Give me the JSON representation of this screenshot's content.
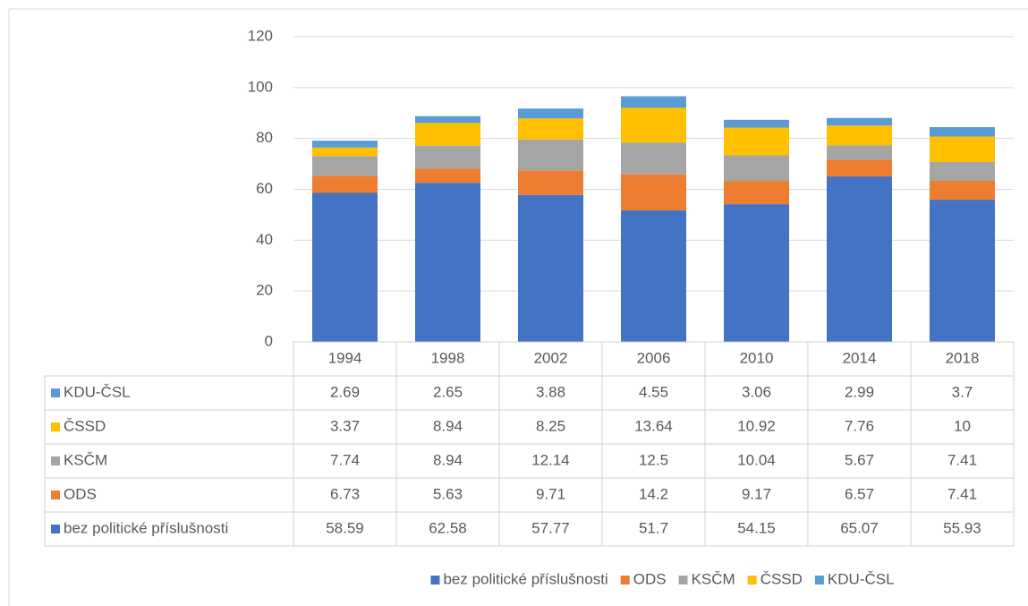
{
  "chart_data": {
    "type": "bar",
    "stacked": true,
    "categories": [
      "1994",
      "1998",
      "2002",
      "2006",
      "2010",
      "2014",
      "2018"
    ],
    "series": [
      {
        "name": "bez politické příslušnosti",
        "color": "#4472c4",
        "values": [
          58.59,
          62.58,
          57.77,
          51.7,
          54.15,
          65.07,
          55.93
        ]
      },
      {
        "name": "ODS",
        "color": "#ed7d31",
        "values": [
          6.73,
          5.63,
          9.71,
          14.2,
          9.17,
          6.57,
          7.41
        ]
      },
      {
        "name": "KSČM",
        "color": "#a5a5a5",
        "values": [
          7.74,
          8.94,
          12.14,
          12.5,
          10.04,
          5.67,
          7.41
        ]
      },
      {
        "name": "ČSSD",
        "color": "#ffc000",
        "values": [
          3.37,
          8.94,
          8.25,
          13.64,
          10.92,
          7.76,
          10
        ]
      },
      {
        "name": "KDU-ČSL",
        "color": "#5b9bd5",
        "values": [
          2.69,
          2.65,
          3.88,
          4.55,
          3.06,
          2.99,
          3.7
        ]
      }
    ],
    "ylim": [
      0,
      120
    ],
    "yticks": [
      0,
      20,
      40,
      60,
      80,
      100,
      120
    ],
    "grid": true,
    "data_table": true,
    "legend": "bottom"
  }
}
